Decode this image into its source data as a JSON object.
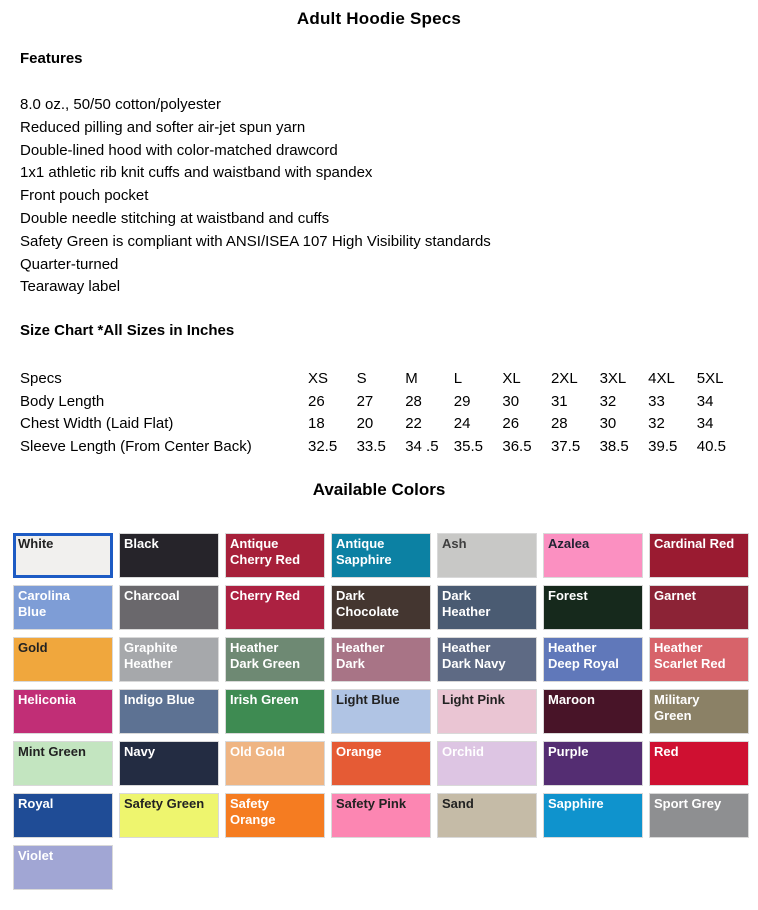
{
  "title": "Adult Hoodie Specs",
  "features": {
    "heading": "Features",
    "items": [
      "8.0 oz., 50/50 cotton/polyester",
      "Reduced pilling and softer air-jet spun yarn",
      "Double-lined hood with color-matched drawcord",
      "1x1 athletic rib knit cuffs and waistband with spandex",
      "Front pouch pocket",
      "Double needle stitching at waistband and cuffs",
      "Safety Green is compliant with ANSI/ISEA 107 High Visibility standards",
      "Quarter-turned",
      "Tearaway label"
    ]
  },
  "size_chart": {
    "heading": "Size Chart *All Sizes in Inches",
    "header_label": "Specs",
    "columns": [
      "XS",
      "S",
      "M",
      "L",
      "XL",
      "2XL",
      "3XL",
      "4XL",
      "5XL"
    ],
    "rows": [
      {
        "label": "Body Length",
        "values": [
          "26",
          "27",
          "28",
          "29",
          "30",
          "31",
          "32",
          "33",
          "34"
        ]
      },
      {
        "label": "Chest Width (Laid Flat)",
        "values": [
          "18",
          "20",
          "22",
          "24",
          "26",
          "28",
          "30",
          "32",
          "34"
        ]
      },
      {
        "label": "Sleeve Length (From Center Back)",
        "values": [
          "32.5",
          "33.5",
          "34 .5",
          "35.5",
          "36.5",
          "37.5",
          "38.5",
          "39.5",
          "40.5"
        ]
      }
    ]
  },
  "colors": {
    "heading": "Available Colors",
    "selected": "White",
    "selected_border": "#1d5bc4",
    "swatch_border": "#d9d9d9",
    "swatches": [
      {
        "label": "White",
        "hex": "#f1f0ee",
        "text": "#222222",
        "selected": true
      },
      {
        "label": "Black",
        "hex": "#26242a",
        "text": "#ffffff"
      },
      {
        "label": "Antique\nCherry Red",
        "hex": "#a7203a",
        "text": "#ffffff"
      },
      {
        "label": "Antique\nSapphire",
        "hex": "#0c81a3",
        "text": "#ffffff"
      },
      {
        "label": "Ash",
        "hex": "#c8c8c6",
        "text": "#3f3f3f"
      },
      {
        "label": "Azalea",
        "hex": "#fb90c1",
        "text": "#222233"
      },
      {
        "label": "Cardinal Red",
        "hex": "#9a1b31",
        "text": "#ffffff"
      },
      {
        "label": "Carolina\nBlue",
        "hex": "#7e9dd6",
        "text": "#ffffff"
      },
      {
        "label": "Charcoal",
        "hex": "#6a686c",
        "text": "#ffffff"
      },
      {
        "label": "Cherry Red",
        "hex": "#ac2141",
        "text": "#ffffff"
      },
      {
        "label": "Dark\nChocolate",
        "hex": "#443630",
        "text": "#ffffff"
      },
      {
        "label": "Dark\nHeather",
        "hex": "#4a5b72",
        "text": "#ffffff"
      },
      {
        "label": "Forest",
        "hex": "#16291c",
        "text": "#ffffff"
      },
      {
        "label": "Garnet",
        "hex": "#8c2336",
        "text": "#ffffff"
      },
      {
        "label": "Gold",
        "hex": "#f0a73d",
        "text": "#222222"
      },
      {
        "label": "Graphite\nHeather",
        "hex": "#a6a8ab",
        "text": "#ffffff"
      },
      {
        "label": "Heather\nDark Green",
        "hex": "#6e8973",
        "text": "#ffffff"
      },
      {
        "label": "Heather\nDark",
        "hex": "#a87486",
        "text": "#ffffff"
      },
      {
        "label": "Heather\nDark Navy",
        "hex": "#5e6a84",
        "text": "#ffffff"
      },
      {
        "label": "Heather\nDeep Royal",
        "hex": "#6078ba",
        "text": "#ffffff"
      },
      {
        "label": "Heather\nScarlet Red",
        "hex": "#d7636a",
        "text": "#ffffff"
      },
      {
        "label": "Heliconia",
        "hex": "#c12e76",
        "text": "#ffffff"
      },
      {
        "label": "Indigo Blue",
        "hex": "#5d7293",
        "text": "#ffffff"
      },
      {
        "label": "Irish Green",
        "hex": "#3e8b52",
        "text": "#ffffff"
      },
      {
        "label": "Light Blue",
        "hex": "#b0c4e4",
        "text": "#222222"
      },
      {
        "label": "Light Pink",
        "hex": "#eac5d3",
        "text": "#222222"
      },
      {
        "label": "Maroon",
        "hex": "#481428",
        "text": "#ffffff"
      },
      {
        "label": "Military\nGreen",
        "hex": "#8b8166",
        "text": "#ffffff"
      },
      {
        "label": "Mint Green",
        "hex": "#c3e5c0",
        "text": "#222222"
      },
      {
        "label": "Navy",
        "hex": "#232c42",
        "text": "#ffffff"
      },
      {
        "label": "Old Gold",
        "hex": "#efb583",
        "text": "#ffffff"
      },
      {
        "label": "Orange",
        "hex": "#e55b35",
        "text": "#ffffff"
      },
      {
        "label": "Orchid",
        "hex": "#ddc5e3",
        "text": "#ffffff"
      },
      {
        "label": "Purple",
        "hex": "#542d72",
        "text": "#ffffff"
      },
      {
        "label": "Red",
        "hex": "#cf1031",
        "text": "#ffffff"
      },
      {
        "label": "Royal",
        "hex": "#1f4c96",
        "text": "#ffffff"
      },
      {
        "label": "Safety Green",
        "hex": "#eef56e",
        "text": "#222222"
      },
      {
        "label": "Safety\nOrange",
        "hex": "#f57c21",
        "text": "#ffffff"
      },
      {
        "label": "Safety Pink",
        "hex": "#fc86b2",
        "text": "#222222"
      },
      {
        "label": "Sand",
        "hex": "#c5bba7",
        "text": "#222222"
      },
      {
        "label": "Sapphire",
        "hex": "#0f93cd",
        "text": "#ffffff"
      },
      {
        "label": "Sport Grey",
        "hex": "#8e8f91",
        "text": "#ffffff"
      },
      {
        "label": "Violet",
        "hex": "#a1a6d4",
        "text": "#ffffff"
      }
    ]
  }
}
